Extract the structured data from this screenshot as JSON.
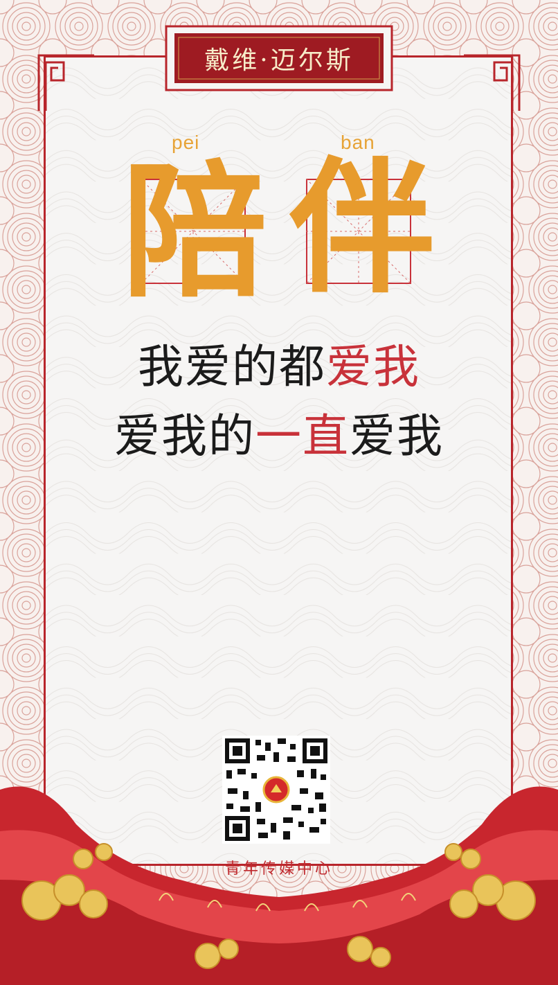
{
  "poster": {
    "title": "戴维·迈尔斯",
    "pinyin": [
      "pei",
      "ban"
    ],
    "characters": [
      "陪",
      "伴"
    ],
    "line1": {
      "black": "我爱的都",
      "red": "爱我"
    },
    "line2": {
      "black1": "爱我的",
      "red": "一直",
      "black2": "爱我"
    },
    "organization": "青年传媒中心"
  },
  "colors": {
    "accent_red": "#b8252b",
    "gold": "#e79b2d",
    "plaque": "#9e1b22"
  },
  "icons": {
    "qr": "qr-code-icon",
    "emblem": "youth-league-emblem-icon"
  }
}
